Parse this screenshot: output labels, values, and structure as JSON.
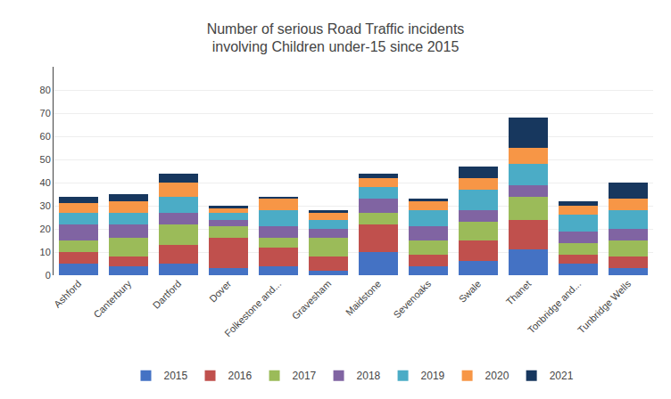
{
  "chart_data": {
    "type": "bar",
    "stacked": true,
    "title": "Number of serious Road Traffic incidents\ninvolving Children under-15 since 2015",
    "categories": [
      "Ashford",
      "Canterbury",
      "Dartford",
      "Dover",
      "Folkestone and...",
      "Gravesham",
      "Maidstone",
      "Sevenoaks",
      "Swale",
      "Thanet",
      "Tonbridge and...",
      "Tunbridge Wells"
    ],
    "series": [
      {
        "name": "2015",
        "color": "#4472C4",
        "values": [
          5,
          4,
          5,
          3,
          4,
          2,
          10,
          4,
          6,
          11,
          5,
          3
        ]
      },
      {
        "name": "2016",
        "color": "#C0504D",
        "values": [
          5,
          4,
          8,
          13,
          8,
          6,
          12,
          5,
          9,
          13,
          4,
          5
        ]
      },
      {
        "name": "2017",
        "color": "#9BBB59",
        "values": [
          5,
          8,
          9,
          5,
          4,
          8,
          5,
          6,
          8,
          10,
          5,
          7
        ]
      },
      {
        "name": "2018",
        "color": "#8064A2",
        "values": [
          7,
          6,
          5,
          3,
          5,
          4,
          6,
          6,
          5,
          5,
          5,
          5
        ]
      },
      {
        "name": "2019",
        "color": "#4BACC6",
        "values": [
          5,
          5,
          7,
          3,
          7,
          4,
          5,
          7,
          9,
          9,
          7,
          8
        ]
      },
      {
        "name": "2020",
        "color": "#F79646",
        "values": [
          4,
          5,
          6,
          2,
          5,
          3,
          4,
          4,
          5,
          7,
          4,
          5
        ]
      },
      {
        "name": "2021",
        "color": "#17375E",
        "values": [
          3,
          3,
          4,
          1,
          1,
          1,
          2,
          1,
          5,
          13,
          2,
          7
        ]
      }
    ],
    "ylim": [
      0,
      90
    ],
    "yticks": [
      0,
      10,
      20,
      30,
      40,
      50,
      60,
      70,
      80
    ],
    "grid": true,
    "legend": "bottom"
  }
}
